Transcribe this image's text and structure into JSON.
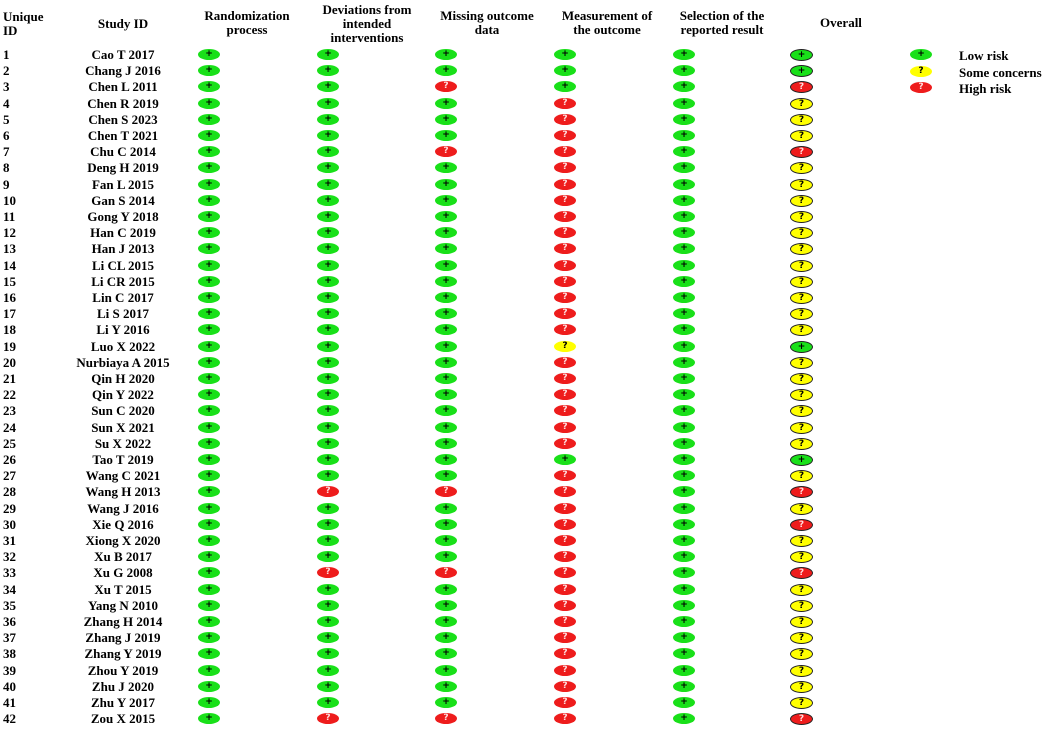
{
  "headers": {
    "uid": [
      "Unique",
      "ID"
    ],
    "study": "Study ID",
    "domains": [
      [
        "Randomization",
        "process"
      ],
      [
        "Deviations from",
        "intended",
        "interventions"
      ],
      [
        "Missing outcome",
        "data"
      ],
      [
        "Measurement of",
        "the outcome"
      ],
      [
        "Selection of the",
        "reported result"
      ],
      [
        "Overall"
      ]
    ]
  },
  "symbols": {
    "low": "+",
    "some": "?",
    "high": "?"
  },
  "colors": {
    "low": "#19e019",
    "some": "#ffff00",
    "high": "#ee1c1c"
  },
  "legend": [
    {
      "level": "low",
      "label": "Low risk"
    },
    {
      "level": "some",
      "label": "Some concerns"
    },
    {
      "level": "high",
      "label": "High risk"
    }
  ],
  "chart_data": {
    "type": "table",
    "columns": [
      "Unique ID",
      "Study ID",
      "Randomization process",
      "Deviations from intended interventions",
      "Missing outcome data",
      "Measurement of the outcome",
      "Selection of the reported result",
      "Overall"
    ],
    "rows": [
      {
        "id": "1",
        "study": "Cao T 2017",
        "r": [
          "low",
          "low",
          "low",
          "low",
          "low",
          "low"
        ]
      },
      {
        "id": "2",
        "study": "Chang J 2016",
        "r": [
          "low",
          "low",
          "low",
          "low",
          "low",
          "low"
        ]
      },
      {
        "id": "3",
        "study": "Chen L 2011",
        "r": [
          "low",
          "low",
          "high",
          "low",
          "low",
          "high"
        ]
      },
      {
        "id": "4",
        "study": "Chen R 2019",
        "r": [
          "low",
          "low",
          "low",
          "high",
          "low",
          "some"
        ]
      },
      {
        "id": "5",
        "study": "Chen S 2023",
        "r": [
          "low",
          "low",
          "low",
          "high",
          "low",
          "some"
        ]
      },
      {
        "id": "6",
        "study": "Chen T 2021",
        "r": [
          "low",
          "low",
          "low",
          "high",
          "low",
          "some"
        ]
      },
      {
        "id": "7",
        "study": "Chu C 2014",
        "r": [
          "low",
          "low",
          "high",
          "high",
          "low",
          "high"
        ]
      },
      {
        "id": "8",
        "study": "Deng H 2019",
        "r": [
          "low",
          "low",
          "low",
          "high",
          "low",
          "some"
        ]
      },
      {
        "id": "9",
        "study": "Fan L 2015",
        "r": [
          "low",
          "low",
          "low",
          "high",
          "low",
          "some"
        ]
      },
      {
        "id": "10",
        "study": "Gan S 2014",
        "r": [
          "low",
          "low",
          "low",
          "high",
          "low",
          "some"
        ]
      },
      {
        "id": "11",
        "study": "Gong Y 2018",
        "r": [
          "low",
          "low",
          "low",
          "high",
          "low",
          "some"
        ]
      },
      {
        "id": "12",
        "study": "Han C 2019",
        "r": [
          "low",
          "low",
          "low",
          "high",
          "low",
          "some"
        ]
      },
      {
        "id": "13",
        "study": "Han J 2013",
        "r": [
          "low",
          "low",
          "low",
          "high",
          "low",
          "some"
        ]
      },
      {
        "id": "14",
        "study": "Li CL 2015",
        "r": [
          "low",
          "low",
          "low",
          "high",
          "low",
          "some"
        ]
      },
      {
        "id": "15",
        "study": "Li CR 2015",
        "r": [
          "low",
          "low",
          "low",
          "high",
          "low",
          "some"
        ]
      },
      {
        "id": "16",
        "study": "Lin C 2017",
        "r": [
          "low",
          "low",
          "low",
          "high",
          "low",
          "some"
        ]
      },
      {
        "id": "17",
        "study": "Li S 2017",
        "r": [
          "low",
          "low",
          "low",
          "high",
          "low",
          "some"
        ]
      },
      {
        "id": "18",
        "study": "Li Y 2016",
        "r": [
          "low",
          "low",
          "low",
          "high",
          "low",
          "some"
        ]
      },
      {
        "id": "19",
        "study": "Luo X 2022",
        "r": [
          "low",
          "low",
          "low",
          "some",
          "low",
          "low"
        ]
      },
      {
        "id": "20",
        "study": "Nurbiaya A 2015",
        "r": [
          "low",
          "low",
          "low",
          "high",
          "low",
          "some"
        ]
      },
      {
        "id": "21",
        "study": "Qin H 2020",
        "r": [
          "low",
          "low",
          "low",
          "high",
          "low",
          "some"
        ]
      },
      {
        "id": "22",
        "study": "Qin Y 2022",
        "r": [
          "low",
          "low",
          "low",
          "high",
          "low",
          "some"
        ]
      },
      {
        "id": "23",
        "study": "Sun C 2020",
        "r": [
          "low",
          "low",
          "low",
          "high",
          "low",
          "some"
        ]
      },
      {
        "id": "24",
        "study": "Sun X 2021",
        "r": [
          "low",
          "low",
          "low",
          "high",
          "low",
          "some"
        ]
      },
      {
        "id": "25",
        "study": "Su X 2022",
        "r": [
          "low",
          "low",
          "low",
          "high",
          "low",
          "some"
        ]
      },
      {
        "id": "26",
        "study": "Tao T 2019",
        "r": [
          "low",
          "low",
          "low",
          "low",
          "low",
          "low"
        ]
      },
      {
        "id": "27",
        "study": "Wang C 2021",
        "r": [
          "low",
          "low",
          "low",
          "high",
          "low",
          "some"
        ]
      },
      {
        "id": "28",
        "study": "Wang H 2013",
        "r": [
          "low",
          "high",
          "high",
          "high",
          "low",
          "high"
        ]
      },
      {
        "id": "29",
        "study": "Wang J 2016",
        "r": [
          "low",
          "low",
          "low",
          "high",
          "low",
          "some"
        ]
      },
      {
        "id": "30",
        "study": "Xie Q 2016",
        "r": [
          "low",
          "low",
          "low",
          "high",
          "low",
          "high"
        ]
      },
      {
        "id": "31",
        "study": "Xiong X 2020",
        "r": [
          "low",
          "low",
          "low",
          "high",
          "low",
          "some"
        ]
      },
      {
        "id": "32",
        "study": "Xu B 2017",
        "r": [
          "low",
          "low",
          "low",
          "high",
          "low",
          "some"
        ]
      },
      {
        "id": "33",
        "study": "Xu G 2008",
        "r": [
          "low",
          "high",
          "high",
          "high",
          "low",
          "high"
        ]
      },
      {
        "id": "34",
        "study": "Xu T 2015",
        "r": [
          "low",
          "low",
          "low",
          "high",
          "low",
          "some"
        ]
      },
      {
        "id": "35",
        "study": "Yang N 2010",
        "r": [
          "low",
          "low",
          "low",
          "high",
          "low",
          "some"
        ]
      },
      {
        "id": "36",
        "study": "Zhang H 2014",
        "r": [
          "low",
          "low",
          "low",
          "high",
          "low",
          "some"
        ]
      },
      {
        "id": "37",
        "study": "Zhang J 2019",
        "r": [
          "low",
          "low",
          "low",
          "high",
          "low",
          "some"
        ]
      },
      {
        "id": "38",
        "study": "Zhang Y 2019",
        "r": [
          "low",
          "low",
          "low",
          "high",
          "low",
          "some"
        ]
      },
      {
        "id": "39",
        "study": "Zhou Y 2019",
        "r": [
          "low",
          "low",
          "low",
          "high",
          "low",
          "some"
        ]
      },
      {
        "id": "40",
        "study": "Zhu J 2020",
        "r": [
          "low",
          "low",
          "low",
          "high",
          "low",
          "some"
        ]
      },
      {
        "id": "41",
        "study": "Zhu Y 2017",
        "r": [
          "low",
          "low",
          "low",
          "high",
          "low",
          "some"
        ]
      },
      {
        "id": "42",
        "study": "Zou X 2015",
        "r": [
          "low",
          "high",
          "high",
          "high",
          "low",
          "high"
        ]
      }
    ]
  }
}
